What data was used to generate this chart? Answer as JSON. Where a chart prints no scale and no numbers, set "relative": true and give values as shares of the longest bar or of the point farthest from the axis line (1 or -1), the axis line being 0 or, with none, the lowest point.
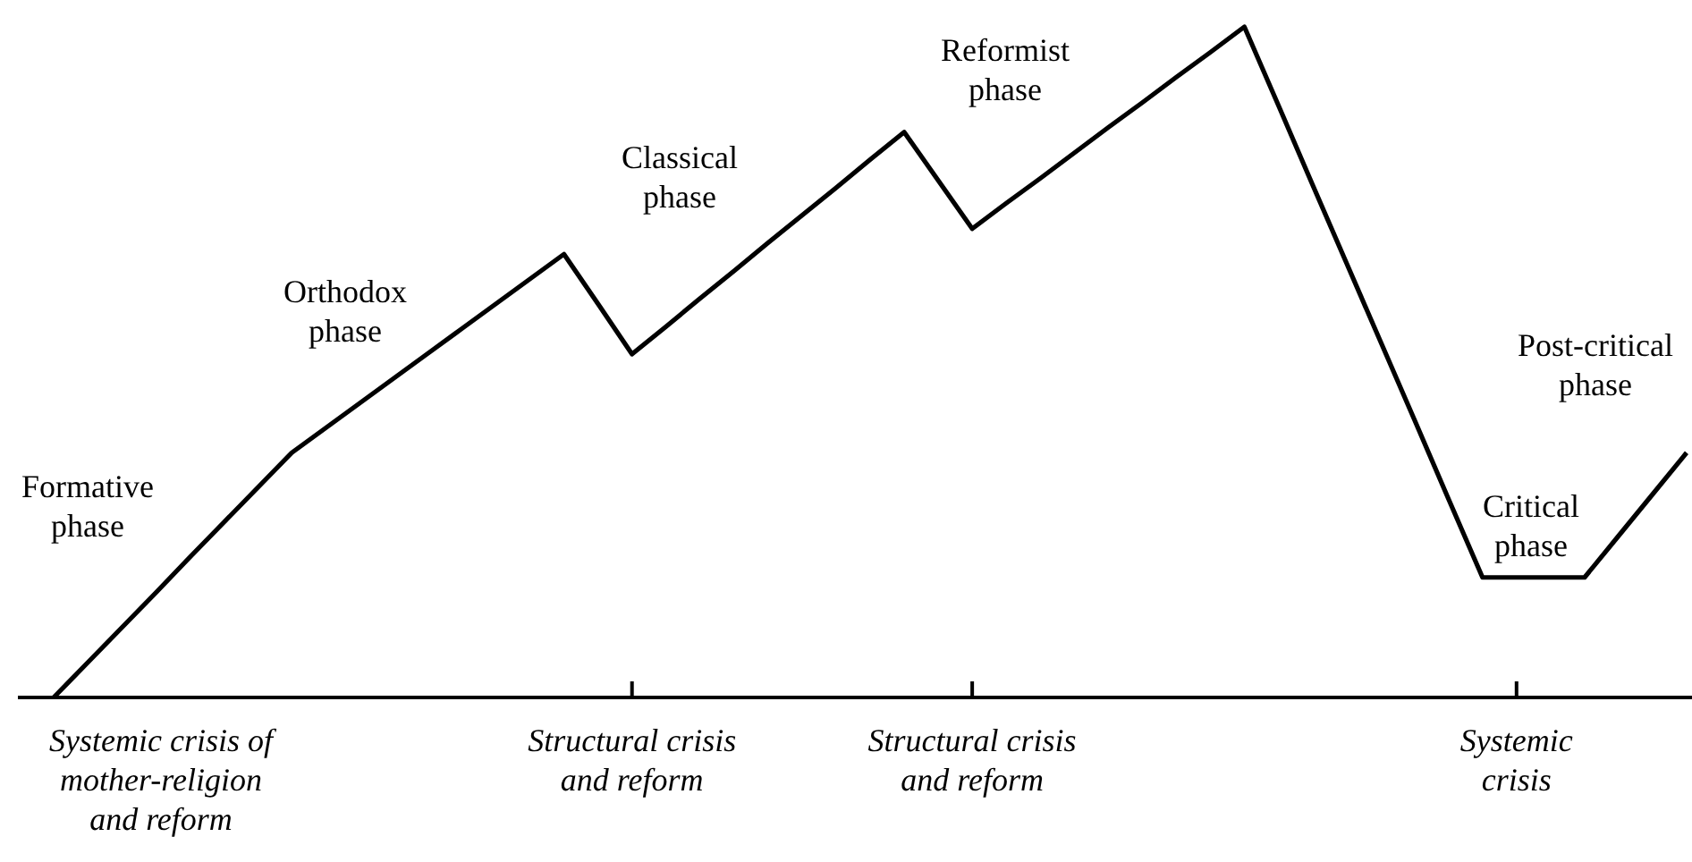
{
  "chart_data": {
    "type": "line",
    "relative": true,
    "categories": [
      null,
      null,
      null,
      null,
      null,
      null,
      null,
      null,
      null,
      null,
      null,
      null,
      null,
      null,
      null,
      null,
      null,
      "Structural crisis\nand reform",
      null,
      null,
      null,
      null,
      null,
      null,
      null,
      null,
      null,
      "Structural crisis\nand reform",
      null,
      null,
      null,
      null,
      null,
      null,
      null,
      null,
      null,
      null,
      null,
      null,
      null,
      null,
      null,
      "Systemic\ncrisis",
      null,
      null,
      null,
      null,
      null
    ],
    "series": [
      {
        "color": "#000000",
        "values": [
          0,
          0.052,
          0.104,
          0.156,
          0.209,
          0.261,
          0.313,
          0.365,
          0.402,
          0.439,
          0.476,
          0.513,
          0.55,
          0.587,
          0.624,
          0.661,
          0.587,
          0.512,
          0.553,
          0.595,
          0.636,
          0.678,
          0.719,
          0.76,
          0.802,
          0.843,
          0.771,
          0.699,
          0.737,
          0.774,
          0.812,
          0.85,
          0.887,
          0.925,
          0.962,
          1,
          0.883,
          0.765,
          0.648,
          0.531,
          0.414,
          0.296,
          0.179,
          0.179,
          0.179,
          0.179,
          0.241,
          0.303,
          0.365
        ]
      }
    ],
    "annotations": [
      "Systemic crisis of\nmother-religion\nand reform",
      "Formative\nphase",
      "Orthodox\nphase",
      "Classical\nphase",
      "Reformist\nphase",
      "Critical\nphase",
      "Post-critical\nphase"
    ],
    "marker": "none",
    "line_style": "solid"
  }
}
